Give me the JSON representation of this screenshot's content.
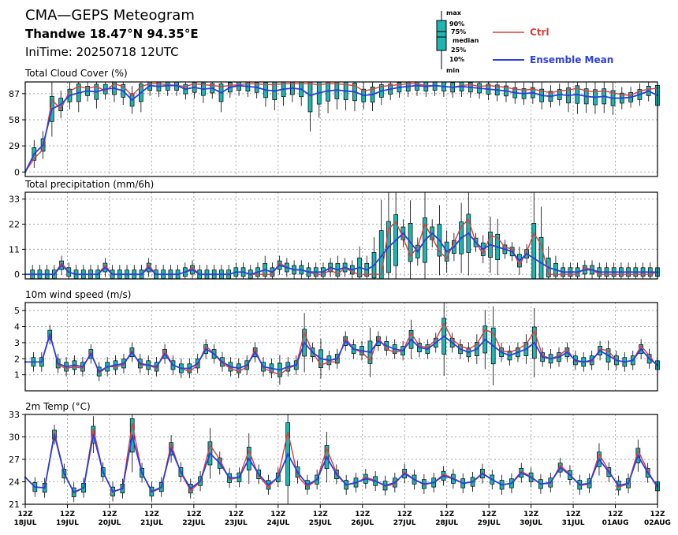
{
  "header": {
    "title": "CMA—GEPS Meteogram",
    "location": "Thandwe 18.47°N 94.35°E",
    "init_time": "IniTime: 20250718 12UTC"
  },
  "legend": {
    "box_labels": [
      "max",
      "90%",
      "75%",
      "median",
      "25%",
      "10%",
      "min"
    ],
    "ctrl_label": "Ctrl",
    "mean_label": "Ensemble Mean",
    "ctrl_color": "#e33b3b",
    "mean_color": "#2a3fe0",
    "box_color": "#1fb5b0"
  },
  "x_axis": {
    "ticks": [
      {
        "hour": "12Z",
        "date": "18JUL"
      },
      {
        "hour": "12Z",
        "date": "19JUL"
      },
      {
        "hour": "12Z",
        "date": "20JUL"
      },
      {
        "hour": "12Z",
        "date": "21JUL"
      },
      {
        "hour": "12Z",
        "date": "22JUL"
      },
      {
        "hour": "12Z",
        "date": "23JUL"
      },
      {
        "hour": "12Z",
        "date": "24JUL"
      },
      {
        "hour": "12Z",
        "date": "25JUL"
      },
      {
        "hour": "12Z",
        "date": "26JUL"
      },
      {
        "hour": "12Z",
        "date": "27JUL"
      },
      {
        "hour": "12Z",
        "date": "28JUL"
      },
      {
        "hour": "12Z",
        "date": "29JUL"
      },
      {
        "hour": "12Z",
        "date": "30JUL"
      },
      {
        "hour": "12Z",
        "date": "31JUL"
      },
      {
        "hour": "12Z",
        "date": "01AUG"
      },
      {
        "hour": "12Z",
        "date": "02AUG"
      }
    ]
  },
  "chart_data": [
    {
      "type": "line",
      "title": "Total Cloud Cover (%)",
      "ylim": [
        -5,
        100
      ],
      "yticks": [
        0,
        29,
        58,
        87
      ],
      "x_unit": "days since 18JUL 12Z (6-hourly)",
      "grid": true,
      "series": [
        {
          "name": "Ctrl",
          "values": [
            0,
            15,
            25,
            80,
            70,
            90,
            95,
            93,
            95,
            90,
            98,
            95,
            85,
            95,
            98,
            98,
            97,
            96,
            95,
            98,
            97,
            96,
            95,
            96,
            97,
            98,
            98,
            97,
            97,
            98,
            98,
            98,
            98,
            97,
            98,
            98,
            97,
            96,
            90,
            92,
            95,
            96,
            97,
            98,
            98,
            96,
            96,
            95,
            94,
            96,
            97,
            95,
            96,
            95,
            94,
            92,
            91,
            92,
            90,
            88,
            90,
            91,
            93,
            90,
            89,
            90,
            88,
            86,
            85,
            90,
            92,
            93
          ]
        },
        {
          "name": "Ensemble Mean",
          "values": [
            0,
            20,
            30,
            70,
            75,
            85,
            88,
            90,
            89,
            92,
            93,
            90,
            80,
            88,
            96,
            95,
            96,
            96,
            92,
            94,
            92,
            93,
            88,
            94,
            96,
            95,
            94,
            91,
            90,
            92,
            93,
            92,
            85,
            88,
            90,
            91,
            90,
            89,
            85,
            86,
            90,
            92,
            94,
            95,
            96,
            95,
            96,
            95,
            94,
            95,
            94,
            93,
            92,
            91,
            90,
            88,
            87,
            88,
            85,
            84,
            86,
            85,
            86,
            84,
            83,
            84,
            82,
            82,
            83,
            86,
            90,
            85
          ]
        }
      ]
    },
    {
      "type": "line",
      "title": "Total precipitation (mm/6h)",
      "ylim": [
        -2,
        36
      ],
      "yticks": [
        0,
        11,
        22,
        33
      ],
      "grid": true,
      "series": [
        {
          "name": "Ctrl",
          "values": [
            0,
            0,
            0,
            0,
            0,
            5,
            1,
            0,
            0,
            0,
            0,
            4,
            0,
            0,
            0,
            0,
            0,
            4,
            0,
            0,
            0,
            0,
            1,
            3,
            0,
            0,
            0,
            0,
            0,
            1,
            1,
            0,
            0,
            0,
            0,
            5,
            3,
            2,
            2,
            1,
            0,
            0,
            2,
            0,
            3,
            1,
            0,
            0,
            0,
            0,
            20,
            23,
            16,
            8,
            12,
            22,
            16,
            10,
            7,
            14,
            21,
            24,
            14,
            9,
            17,
            16,
            12,
            11,
            4,
            10,
            18,
            13,
            0,
            0,
            0,
            0,
            0,
            3,
            2,
            0,
            0,
            0,
            0,
            0,
            0,
            0,
            0,
            1
          ]
        },
        {
          "name": "Ensemble Mean",
          "values": [
            0,
            0,
            0,
            0,
            0,
            4,
            1,
            0,
            0,
            0,
            0,
            3,
            0,
            0,
            0,
            0,
            0,
            3,
            0,
            0,
            0,
            0,
            1,
            2,
            0,
            0,
            0,
            0,
            0,
            1,
            1,
            0,
            1,
            2,
            1,
            4,
            3,
            2,
            2,
            1,
            1,
            1,
            3,
            2,
            3,
            2,
            3,
            2,
            4,
            8,
            12,
            15,
            18,
            14,
            10,
            15,
            18,
            15,
            10,
            12,
            16,
            18,
            14,
            11,
            13,
            12,
            11,
            10,
            6,
            9,
            7,
            5,
            3,
            2,
            1,
            1,
            1,
            2,
            2,
            1,
            1,
            1,
            1,
            1,
            1,
            1,
            1,
            1
          ]
        }
      ]
    },
    {
      "type": "line",
      "title": "10m wind speed (m/s)",
      "ylim": [
        0,
        5.5
      ],
      "yticks": [
        1,
        2,
        3,
        4,
        5
      ],
      "grid": true,
      "series": [
        {
          "name": "Ctrl",
          "values": [
            1.8,
            1.8,
            1.8,
            3.6,
            1.6,
            1.4,
            1.5,
            1.4,
            2.4,
            1.1,
            1.5,
            1.5,
            1.6,
            2.5,
            1.6,
            1.6,
            1.4,
            2.5,
            1.6,
            1.4,
            1.2,
            1.6,
            2.8,
            2.3,
            1.7,
            1.4,
            1.2,
            1.5,
            2.6,
            1.4,
            1.2,
            1.0,
            1.4,
            1.6,
            3.6,
            2.4,
            1.6,
            1.8,
            1.8,
            3.3,
            2.6,
            2.4,
            1.9,
            3.3,
            2.6,
            2.4,
            2.5,
            3.6,
            2.8,
            2.7,
            3.2,
            4.2,
            3.2,
            2.8,
            2.6,
            2.9,
            3.8,
            3.6,
            2.5,
            2.4,
            2.6,
            2.9,
            3.7,
            2.2,
            2.0,
            2.2,
            2.6,
            1.8,
            1.8,
            1.8,
            2.6,
            2.5,
            1.9,
            1.8,
            1.9,
            2.8,
            2.2,
            1.5
          ]
        },
        {
          "name": "Ensemble Mean",
          "values": [
            1.8,
            1.8,
            1.8,
            3.5,
            1.7,
            1.5,
            1.6,
            1.5,
            2.3,
            1.2,
            1.5,
            1.6,
            1.7,
            2.4,
            1.7,
            1.6,
            1.5,
            2.3,
            1.6,
            1.4,
            1.4,
            1.7,
            2.6,
            2.3,
            1.8,
            1.5,
            1.4,
            1.6,
            2.4,
            1.5,
            1.4,
            1.3,
            1.5,
            1.6,
            3.0,
            2.4,
            2.0,
            1.9,
            2.0,
            3.1,
            2.6,
            2.5,
            2.4,
            3.1,
            2.8,
            2.6,
            2.5,
            3.2,
            2.7,
            2.6,
            3.0,
            3.4,
            3.0,
            2.6,
            2.4,
            2.6,
            3.2,
            2.8,
            2.4,
            2.2,
            2.4,
            2.6,
            3.0,
            2.1,
            2.0,
            2.1,
            2.4,
            1.9,
            1.8,
            1.9,
            2.5,
            2.2,
            1.9,
            1.8,
            1.9,
            2.6,
            2.0,
            1.6
          ]
        }
      ]
    },
    {
      "type": "line",
      "title": "2m Temp (°C)",
      "ylim": [
        21,
        33
      ],
      "yticks": [
        21,
        24,
        27,
        30,
        33
      ],
      "grid": true,
      "series": [
        {
          "name": "Ctrl",
          "values": [
            24.6,
            23.3,
            23.2,
            30.6,
            25.2,
            22.5,
            23.2,
            31.1,
            25.3,
            22.6,
            23.1,
            31.8,
            25.2,
            22.6,
            23.2,
            29.0,
            25.2,
            22.8,
            24.0,
            28.9,
            27.0,
            24.3,
            24.6,
            28.2,
            24.8,
            23.3,
            24.7,
            30.7,
            24.8,
            23.3,
            24.3,
            28.4,
            25.2,
            23.6,
            23.8,
            24.6,
            24.2,
            23.4,
            23.7,
            25.3,
            24.3,
            23.6,
            23.9,
            25.0,
            24.5,
            23.8,
            24.0,
            25.2,
            24.3,
            23.6,
            23.8,
            25.4,
            24.7,
            23.7,
            23.8,
            26.2,
            25.0,
            23.5,
            23.7,
            27.7,
            25.5,
            23.3,
            23.7,
            28.2,
            25.5,
            23.1
          ]
        },
        {
          "name": "Ensemble Mean",
          "values": [
            24.6,
            23.3,
            23.2,
            30.3,
            25.1,
            22.6,
            23.2,
            30.3,
            25.3,
            22.7,
            23.1,
            30.2,
            25.2,
            22.7,
            23.3,
            28.4,
            25.3,
            23.1,
            24.1,
            27.8,
            26.5,
            24.5,
            24.6,
            27.1,
            25.0,
            23.6,
            24.6,
            27.7,
            25.3,
            23.6,
            24.3,
            27.3,
            25.0,
            23.6,
            23.9,
            24.4,
            24.1,
            23.5,
            23.9,
            25.1,
            24.3,
            23.7,
            23.9,
            24.8,
            24.4,
            23.8,
            24.0,
            25.1,
            24.3,
            23.6,
            23.8,
            25.2,
            24.6,
            23.7,
            23.9,
            25.9,
            24.9,
            23.6,
            23.8,
            27.0,
            25.3,
            23.5,
            23.8,
            27.5,
            25.2,
            23.4
          ]
        }
      ]
    }
  ]
}
